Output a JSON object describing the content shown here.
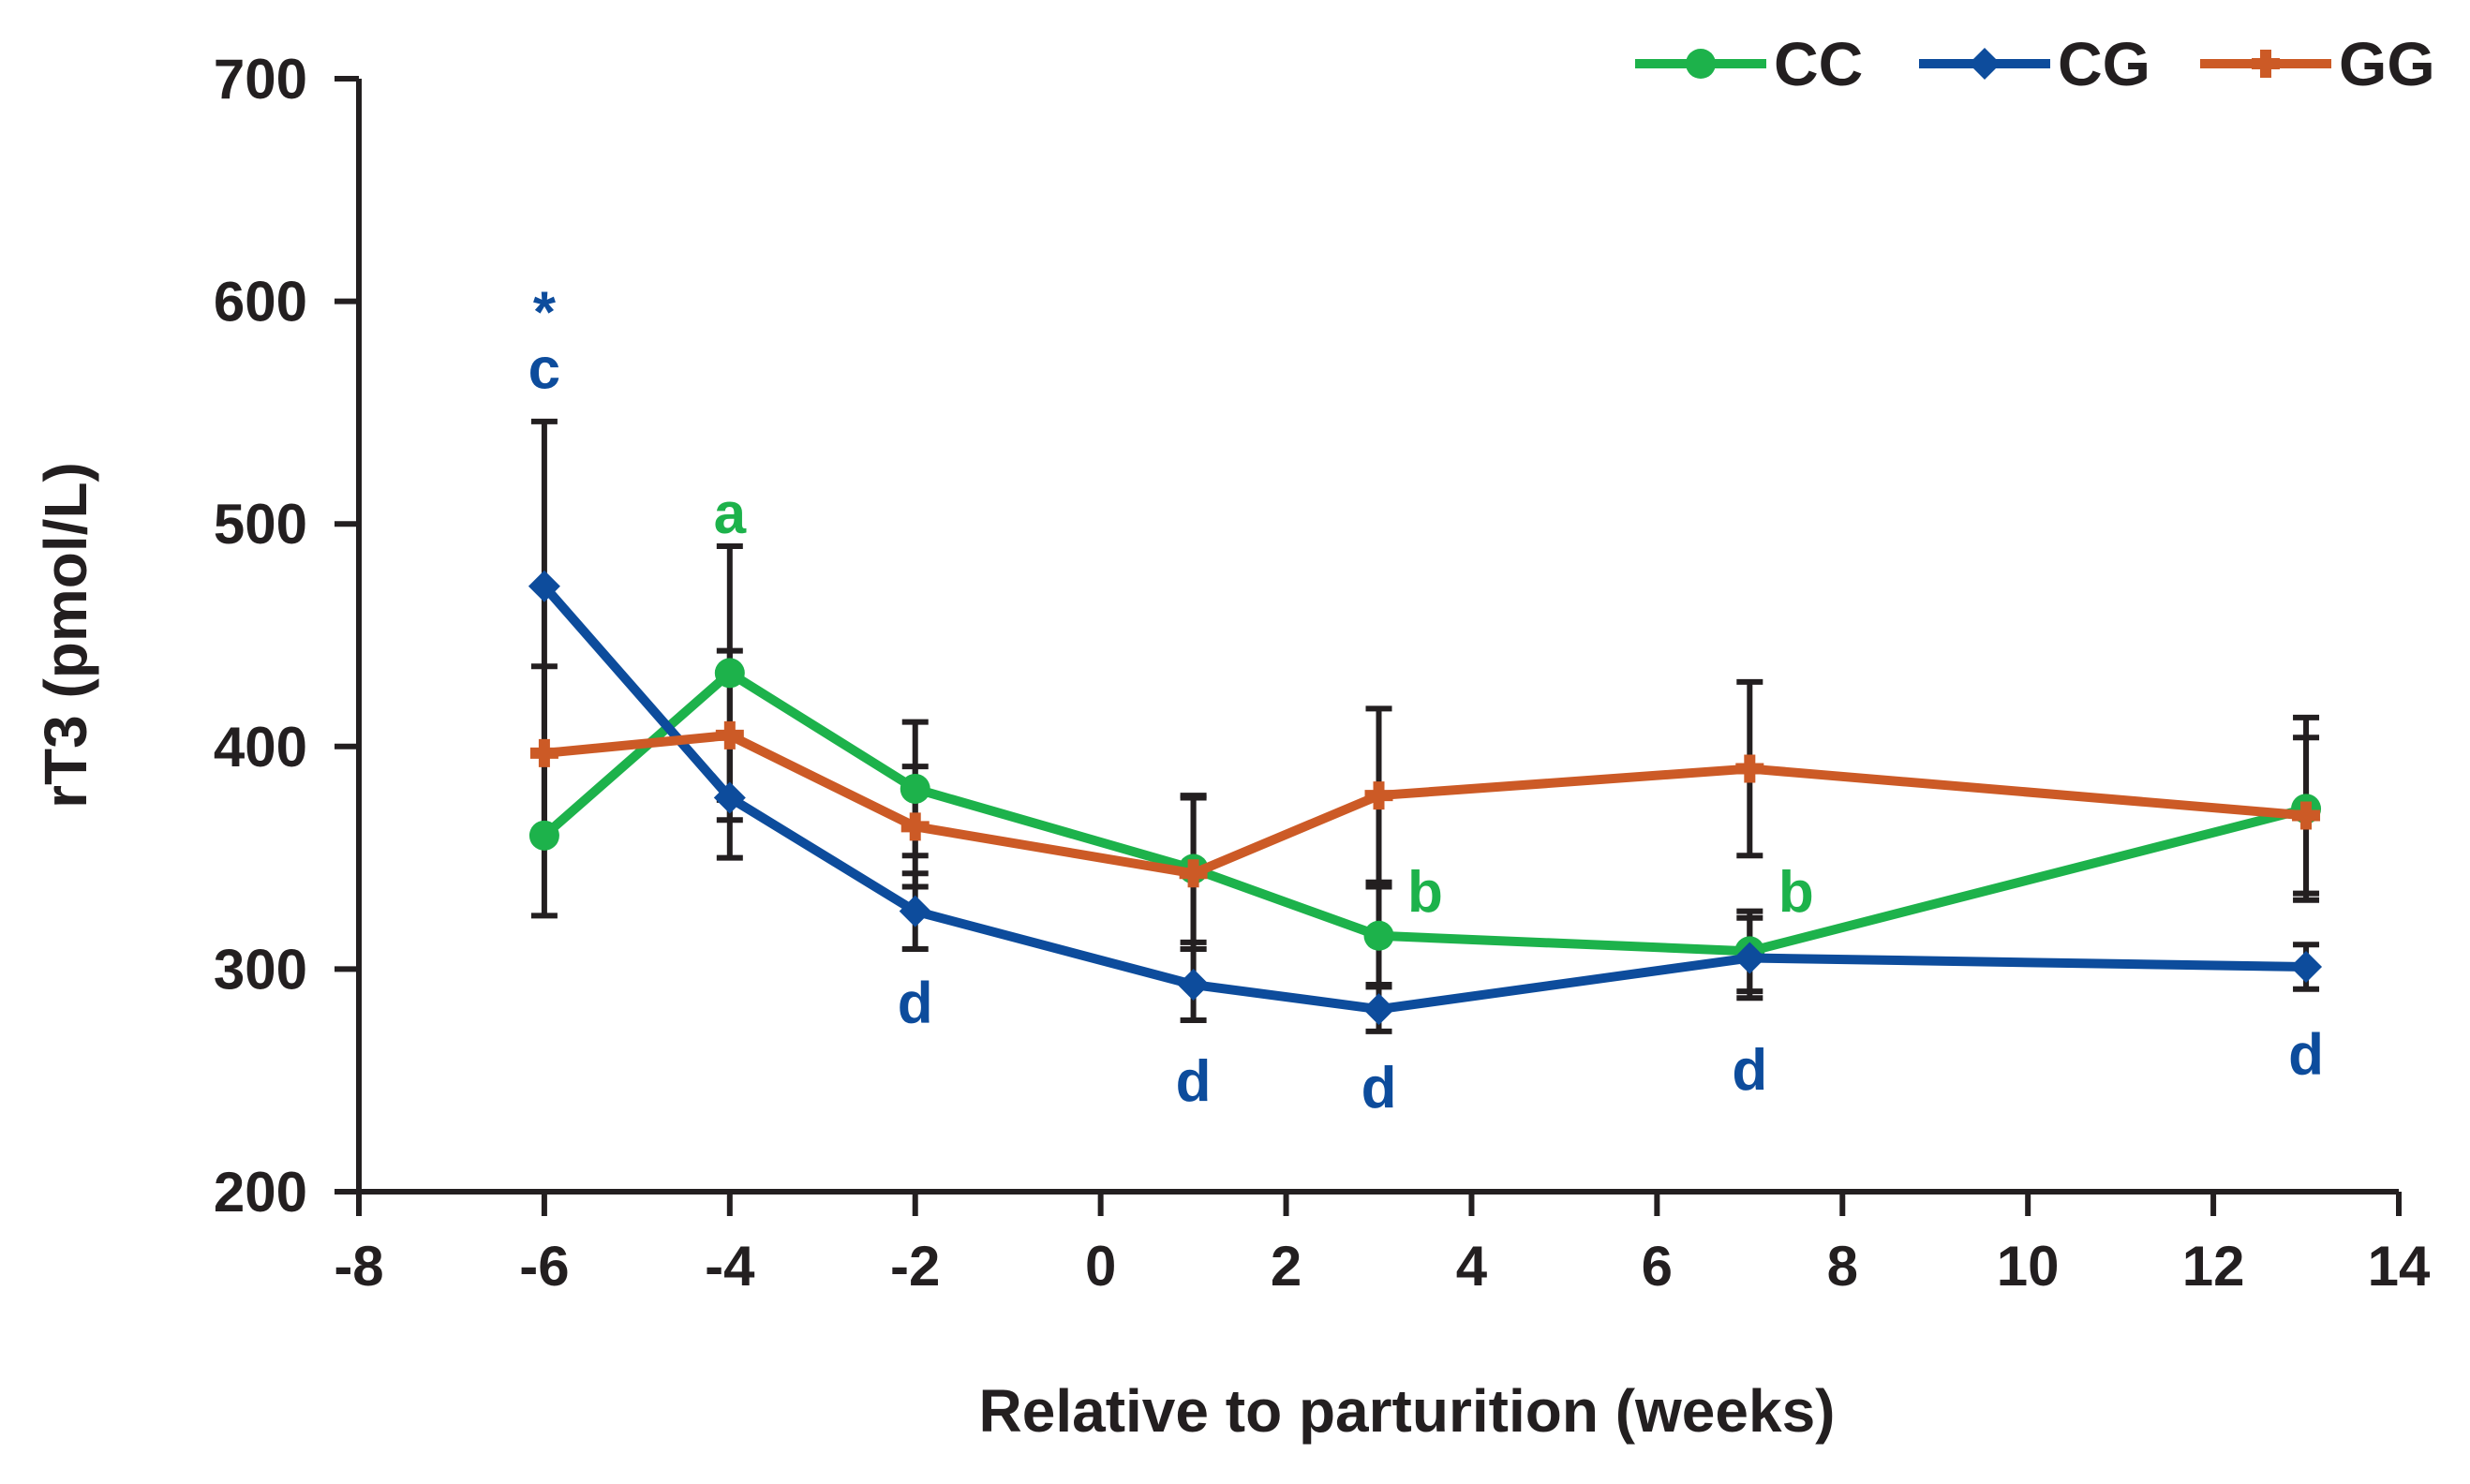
{
  "chart_data": {
    "type": "line",
    "xlabel": "Relative to parturition (weeks)",
    "ylabel": "rT3 (pmol/L)",
    "xlim": [
      -8,
      14
    ],
    "ylim": [
      200,
      700
    ],
    "x_ticks": [
      -8,
      -6,
      -4,
      -2,
      0,
      2,
      4,
      6,
      8,
      10,
      12,
      14
    ],
    "x_tick_labels": [
      "-8",
      "-6",
      "-4",
      "-2",
      "0",
      "2",
      "4",
      "6",
      "8",
      "10",
      "12",
      "14"
    ],
    "y_ticks": [
      200,
      300,
      400,
      500,
      600,
      700
    ],
    "y_tick_labels": [
      "200",
      "300",
      "400",
      "500",
      "600",
      "700"
    ],
    "legend_position": "top-right",
    "x": [
      -6,
      -4,
      -2,
      1,
      3,
      7,
      13
    ],
    "series": [
      {
        "name": "CC",
        "color": "#1db24b",
        "marker": "circle",
        "values": [
          360,
          433,
          381,
          345,
          315,
          308,
          372
        ],
        "errors": [
          36,
          57,
          30,
          33,
          22,
          18,
          41
        ]
      },
      {
        "name": "CG",
        "color": "#0d4c9c",
        "marker": "diamond",
        "values": [
          472,
          377,
          326,
          293,
          282,
          305,
          301
        ],
        "errors": [
          74,
          27,
          17,
          16,
          10,
          18,
          10
        ]
      },
      {
        "name": "GG",
        "color": "#cc5a26",
        "marker": "cross",
        "values": [
          397,
          405,
          364,
          343,
          378,
          390,
          369
        ],
        "errors": [
          39,
          38,
          27,
          34,
          39,
          39,
          35
        ]
      }
    ],
    "annotations": [
      {
        "text": "*",
        "x": -6,
        "y": 598,
        "color": "#0d4c9c",
        "size": "large"
      },
      {
        "text": "c",
        "x": -6,
        "y": 570,
        "color": "#0d4c9c"
      },
      {
        "text": "a",
        "x": -4,
        "y": 505,
        "color": "#1db24b"
      },
      {
        "text": "d",
        "x": -2,
        "y": 285,
        "color": "#0d4c9c"
      },
      {
        "text": "d",
        "x": 1,
        "y": 250,
        "color": "#0d4c9c"
      },
      {
        "text": "d",
        "x": 3,
        "y": 247,
        "color": "#0d4c9c"
      },
      {
        "text": "b",
        "x": 3.5,
        "y": 335,
        "color": "#1db24b"
      },
      {
        "text": "d",
        "x": 7,
        "y": 255,
        "color": "#0d4c9c"
      },
      {
        "text": "b",
        "x": 7.5,
        "y": 335,
        "color": "#1db24b"
      },
      {
        "text": "d",
        "x": 13,
        "y": 262,
        "color": "#0d4c9c"
      }
    ]
  }
}
